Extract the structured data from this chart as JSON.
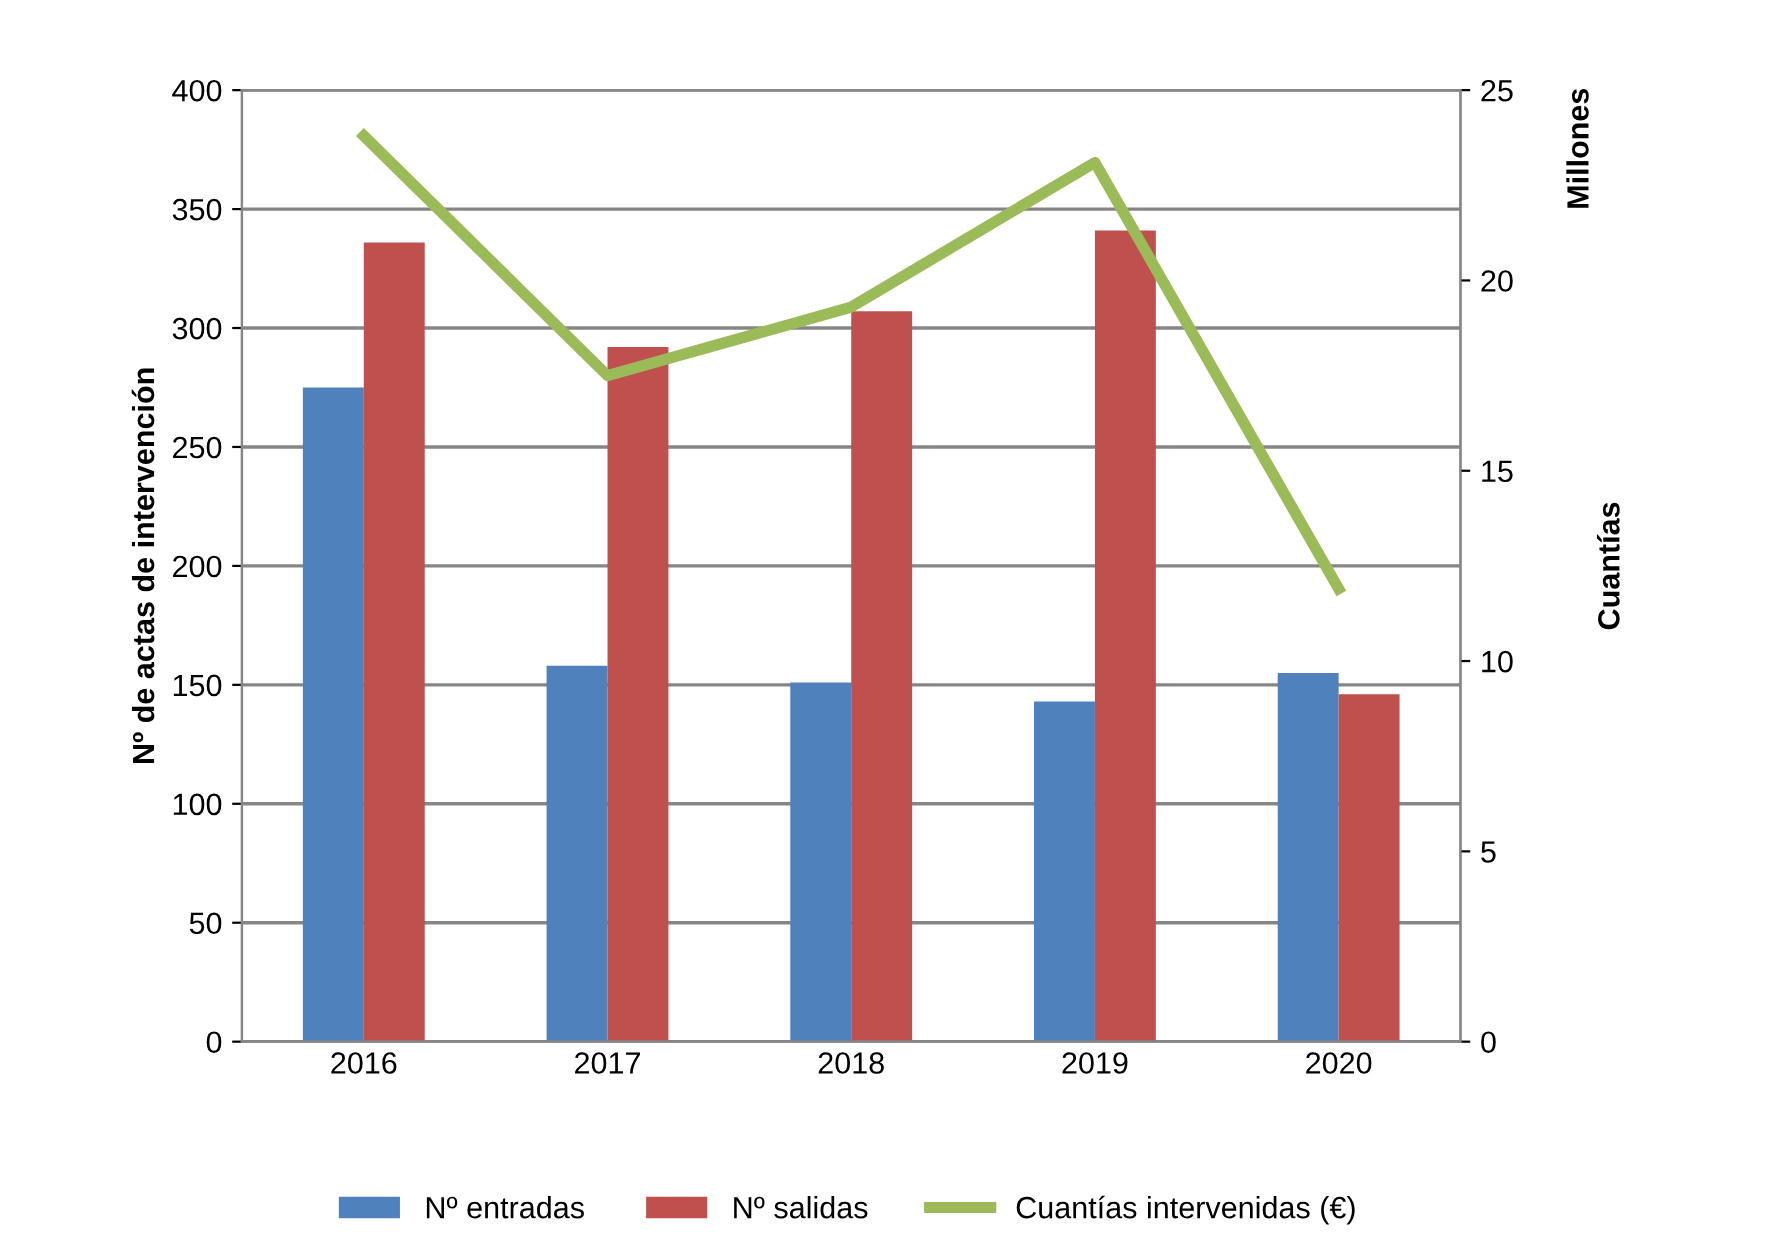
{
  "chart_data": {
    "type": "bar",
    "categories": [
      "2016",
      "2017",
      "2018",
      "2019",
      "2020"
    ],
    "series": [
      {
        "name": "Nº entradas",
        "color": "#4f81bd",
        "values": [
          275,
          158,
          151,
          143,
          155
        ]
      },
      {
        "name": "Nº salidas",
        "color": "#c0504d",
        "values": [
          336,
          292,
          307,
          341,
          146
        ]
      },
      {
        "name": "Cuantías intervenidas (€)",
        "color": "#9bbb59",
        "type": "line",
        "axis": "y2",
        "values": [
          23.8,
          17.5,
          19.3,
          23.1,
          11.9
        ]
      }
    ],
    "ylabel": "Nº de actas de intervención",
    "y2label": "Cuantías",
    "annotations": [
      "Millones"
    ],
    "ylim": [
      0,
      400
    ],
    "yticks": [
      0,
      50,
      100,
      150,
      200,
      250,
      300,
      350,
      400
    ],
    "y2lim": [
      0,
      25
    ],
    "y2ticks": [
      0,
      5,
      10,
      15,
      20,
      25
    ],
    "grid": "y",
    "legend": "bottom",
    "marker": "none",
    "line_style": "solid"
  }
}
